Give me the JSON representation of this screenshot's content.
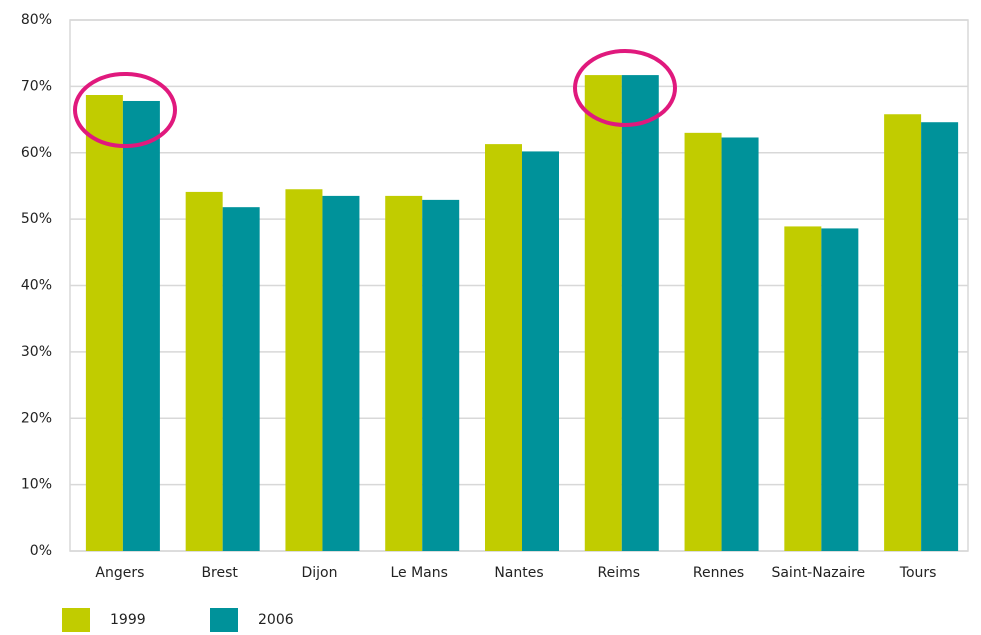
{
  "chart_data": {
    "type": "bar",
    "categories": [
      "Angers",
      "Brest",
      "Dijon",
      "Le Mans",
      "Nantes",
      "Reims",
      "Rennes",
      "Saint-Nazaire",
      "Tours"
    ],
    "series": [
      {
        "name": "1999",
        "color": "#c1cc00",
        "values": [
          68.7,
          54.1,
          54.5,
          53.5,
          61.3,
          71.7,
          63.0,
          48.9,
          65.8
        ]
      },
      {
        "name": "2006",
        "color": "#00929a",
        "values": [
          67.8,
          51.8,
          53.5,
          52.9,
          60.2,
          71.7,
          62.3,
          48.6,
          64.6
        ]
      }
    ],
    "ylim": [
      0,
      80
    ],
    "yticks": [
      {
        "value": 0,
        "label": "0%"
      },
      {
        "value": 10,
        "label": "10%"
      },
      {
        "value": 20,
        "label": "20%"
      },
      {
        "value": 30,
        "label": "30%"
      },
      {
        "value": 40,
        "label": "40%"
      },
      {
        "value": 50,
        "label": "50%"
      },
      {
        "value": 60,
        "label": "60%"
      },
      {
        "value": 70,
        "label": "70%"
      },
      {
        "value": 80,
        "label": "80%"
      }
    ],
    "grid": true
  }
}
